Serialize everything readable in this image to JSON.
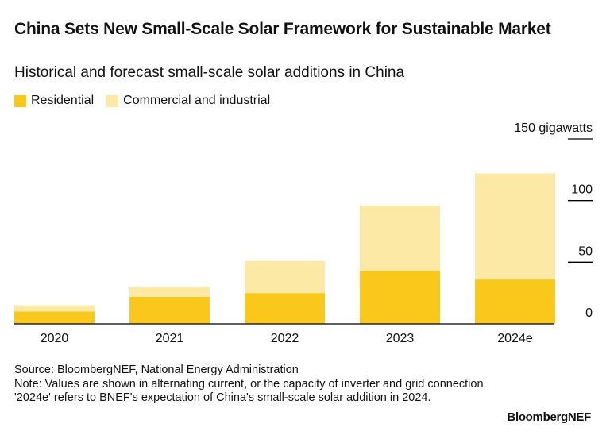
{
  "header": {
    "title": "China Sets New Small-Scale Solar Framework for Sustainable Market",
    "subtitle": "Historical and forecast small-scale solar additions in China"
  },
  "colors": {
    "residential": "#F9C81B",
    "commercial": "#FDE9A6",
    "axis": "#000000"
  },
  "chart_data": {
    "type": "bar",
    "stacked": true,
    "categories": [
      "2020",
      "2021",
      "2022",
      "2023",
      "2024e"
    ],
    "series": [
      {
        "name": "Residential",
        "values": [
          10,
          22,
          25,
          43,
          36
        ]
      },
      {
        "name": "Commercial and industrial",
        "values": [
          5,
          8,
          26,
          53,
          86
        ]
      }
    ],
    "y_ticks": [
      0,
      50,
      100,
      150
    ],
    "y_top_label": "150 gigawatts",
    "ylim": [
      0,
      150
    ],
    "y_axis_side": "right",
    "grid": false,
    "legend_position": "top-left"
  },
  "footer": {
    "source": "Source: BloombergNEF, National Energy Administration",
    "note": "Note: Values are shown in alternating current, or the capacity of inverter and grid connection. '2024e' refers to BNEF's expectation of China's small-scale solar addition in 2024.",
    "brand": "BloombergNEF"
  }
}
